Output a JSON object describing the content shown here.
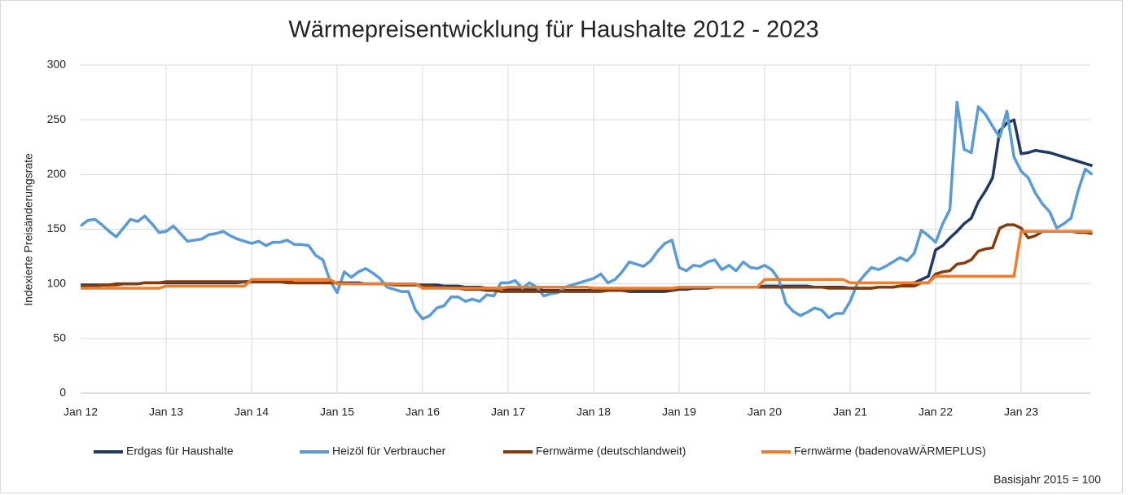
{
  "chart_data": {
    "type": "line",
    "title": "Wärmepreisentwicklung für Haushalte 2012 - 2023",
    "y_label": "Indexierte Preisänderungsrate",
    "note": "Basisjahr 2015 = 100",
    "legend": "bottom",
    "grid": true,
    "ylim": [
      0,
      300
    ],
    "yticks": [
      0,
      50,
      100,
      150,
      200,
      250,
      300
    ],
    "categories": [
      "Jan 12",
      null,
      null,
      null,
      null,
      null,
      null,
      null,
      null,
      null,
      null,
      null,
      "Jan 13",
      null,
      null,
      null,
      null,
      null,
      null,
      null,
      null,
      null,
      null,
      null,
      "Jan 14",
      null,
      null,
      null,
      null,
      null,
      null,
      null,
      null,
      null,
      null,
      null,
      "Jan 15",
      null,
      null,
      null,
      null,
      null,
      null,
      null,
      null,
      null,
      null,
      null,
      "Jan 16",
      null,
      null,
      null,
      null,
      null,
      null,
      null,
      null,
      null,
      null,
      null,
      "Jan 17",
      null,
      null,
      null,
      null,
      null,
      null,
      null,
      null,
      null,
      null,
      null,
      "Jan 18",
      null,
      null,
      null,
      null,
      null,
      null,
      null,
      null,
      null,
      null,
      null,
      "Jan 19",
      null,
      null,
      null,
      null,
      null,
      null,
      null,
      null,
      null,
      null,
      null,
      "Jan 20",
      null,
      null,
      null,
      null,
      null,
      null,
      null,
      null,
      null,
      null,
      null,
      "Jan 21",
      null,
      null,
      null,
      null,
      null,
      null,
      null,
      null,
      null,
      null,
      null,
      "Jan 22",
      null,
      null,
      null,
      null,
      null,
      null,
      null,
      null,
      null,
      null,
      null,
      "Jan 23",
      null,
      null,
      null,
      null,
      null,
      null,
      null,
      null,
      null,
      null
    ],
    "series": [
      {
        "name": "Erdgas für Haushalte",
        "color": "#203864",
        "values": [
          99,
          99,
          99,
          99,
          99,
          100,
          100,
          100,
          100,
          101,
          101,
          101,
          101,
          101,
          101,
          101,
          101,
          101,
          101,
          101,
          101,
          101,
          101,
          102,
          102,
          102,
          102,
          102,
          102,
          102,
          101,
          101,
          101,
          101,
          101,
          101,
          101,
          101,
          101,
          101,
          100,
          100,
          100,
          100,
          100,
          99,
          99,
          99,
          99,
          99,
          99,
          98,
          98,
          98,
          97,
          97,
          97,
          96,
          96,
          96,
          95,
          95,
          95,
          95,
          95,
          94,
          94,
          94,
          94,
          94,
          94,
          94,
          94,
          94,
          94,
          94,
          94,
          93,
          93,
          93,
          93,
          93,
          93,
          94,
          95,
          95,
          96,
          96,
          96,
          97,
          97,
          97,
          97,
          97,
          97,
          97,
          98,
          98,
          98,
          98,
          98,
          98,
          98,
          97,
          97,
          97,
          97,
          97,
          96,
          96,
          96,
          96,
          97,
          97,
          97,
          98,
          99,
          101,
          104,
          107,
          131,
          135,
          142,
          148,
          155,
          160,
          175,
          185,
          197,
          240,
          247,
          250,
          219,
          220,
          222,
          221,
          220,
          218,
          216,
          214,
          212,
          210,
          208
        ]
      },
      {
        "name": "Heizöl für Verbraucher",
        "color": "#5b9bd5",
        "values": [
          153,
          158,
          159,
          154,
          148,
          143,
          151,
          159,
          157,
          162,
          155,
          147,
          148,
          153,
          146,
          139,
          140,
          141,
          145,
          146,
          148,
          144,
          141,
          139,
          137,
          139,
          135,
          138,
          138,
          140,
          136,
          136,
          135,
          126,
          122,
          103,
          92,
          111,
          106,
          111,
          114,
          110,
          105,
          97,
          95,
          93,
          93,
          76,
          68,
          71,
          78,
          80,
          88,
          88,
          84,
          86,
          84,
          90,
          89,
          101,
          101,
          103,
          96,
          101,
          97,
          89,
          91,
          92,
          97,
          99,
          101,
          103,
          105,
          109,
          101,
          104,
          111,
          120,
          118,
          116,
          121,
          130,
          137,
          140,
          115,
          112,
          117,
          116,
          120,
          122,
          113,
          117,
          112,
          120,
          115,
          114,
          117,
          113,
          104,
          82,
          75,
          71,
          74,
          78,
          76,
          69,
          73,
          73,
          84,
          100,
          108,
          115,
          113,
          116,
          120,
          124,
          121,
          128,
          149,
          144,
          138,
          155,
          168,
          266,
          223,
          220,
          262,
          255,
          244,
          234,
          258,
          216,
          203,
          197,
          183,
          173,
          166,
          151,
          155,
          160,
          185,
          205,
          200
        ]
      },
      {
        "name": "Fernwärme (deutschlandweit)",
        "color": "#843c0c",
        "values": [
          98,
          98,
          98,
          99,
          99,
          99,
          100,
          100,
          100,
          101,
          101,
          101,
          102,
          102,
          102,
          102,
          102,
          102,
          102,
          102,
          102,
          102,
          102,
          102,
          102,
          102,
          102,
          102,
          102,
          101,
          101,
          101,
          101,
          101,
          101,
          101,
          101,
          101,
          100,
          100,
          100,
          100,
          100,
          100,
          99,
          99,
          99,
          99,
          98,
          98,
          97,
          97,
          96,
          96,
          95,
          95,
          95,
          94,
          94,
          93,
          93,
          93,
          93,
          93,
          93,
          93,
          93,
          93,
          93,
          93,
          93,
          93,
          93,
          93,
          94,
          94,
          94,
          94,
          95,
          95,
          95,
          95,
          95,
          95,
          96,
          96,
          97,
          97,
          97,
          97,
          97,
          97,
          97,
          97,
          97,
          97,
          97,
          97,
          97,
          97,
          97,
          97,
          97,
          97,
          97,
          96,
          96,
          96,
          96,
          96,
          96,
          96,
          97,
          97,
          97,
          98,
          98,
          98,
          101,
          101,
          109,
          111,
          112,
          118,
          119,
          122,
          130,
          132,
          133,
          151,
          154,
          154,
          151,
          142,
          144,
          148,
          148,
          148,
          148,
          148,
          147,
          147,
          146
        ]
      },
      {
        "name": "Fernwärme (badenovaWÄRMEPLUS)",
        "color": "#ed7d31",
        "values": [
          96,
          96,
          96,
          96,
          96,
          96,
          96,
          96,
          96,
          96,
          96,
          96,
          98,
          98,
          98,
          98,
          98,
          98,
          98,
          98,
          98,
          98,
          98,
          98,
          104,
          104,
          104,
          104,
          104,
          104,
          104,
          104,
          104,
          104,
          104,
          104,
          100,
          100,
          100,
          100,
          100,
          100,
          100,
          100,
          100,
          100,
          100,
          100,
          96,
          96,
          96,
          96,
          96,
          96,
          96,
          96,
          96,
          96,
          96,
          96,
          97,
          97,
          97,
          97,
          97,
          97,
          97,
          97,
          97,
          97,
          97,
          97,
          96,
          96,
          96,
          96,
          96,
          96,
          96,
          96,
          96,
          96,
          96,
          96,
          97,
          97,
          97,
          97,
          97,
          97,
          97,
          97,
          97,
          97,
          97,
          97,
          104,
          104,
          104,
          104,
          104,
          104,
          104,
          104,
          104,
          104,
          104,
          104,
          101,
          101,
          101,
          101,
          101,
          101,
          101,
          101,
          101,
          101,
          101,
          101,
          107,
          107,
          107,
          107,
          107,
          107,
          107,
          107,
          107,
          107,
          107,
          107,
          148,
          148,
          148,
          148,
          148,
          148,
          148,
          148,
          148,
          148,
          148
        ]
      }
    ]
  }
}
